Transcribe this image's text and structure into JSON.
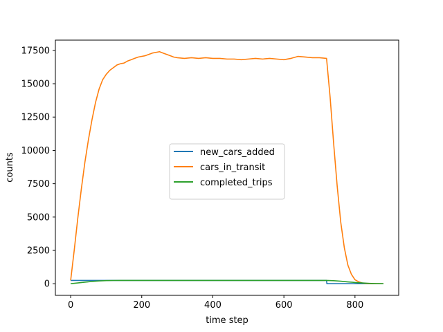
{
  "chart_data": {
    "type": "line",
    "title": "",
    "xlabel": "time step",
    "ylabel": "counts",
    "xlim": [
      -43,
      923
    ],
    "ylim": [
      -870,
      18270
    ],
    "xticks": [
      0,
      200,
      400,
      600,
      800
    ],
    "yticks": [
      0,
      2500,
      5000,
      7500,
      10000,
      12500,
      15000,
      17500
    ],
    "grid": false,
    "legend_position": "center",
    "series": [
      {
        "name": "new_cars_added",
        "color": "#1f77b4",
        "x": [
          0,
          5,
          720,
          721,
          880
        ],
        "y": [
          250,
          250,
          250,
          0,
          0
        ]
      },
      {
        "name": "cars_in_transit",
        "color": "#ff7f0e",
        "x": [
          0,
          10,
          20,
          30,
          40,
          50,
          60,
          70,
          80,
          90,
          100,
          110,
          120,
          130,
          140,
          150,
          160,
          170,
          180,
          190,
          200,
          210,
          220,
          230,
          240,
          250,
          260,
          270,
          280,
          290,
          300,
          320,
          340,
          360,
          380,
          400,
          420,
          440,
          460,
          480,
          500,
          520,
          540,
          560,
          580,
          600,
          620,
          640,
          660,
          680,
          700,
          720,
          730,
          740,
          750,
          760,
          770,
          780,
          790,
          800,
          810,
          820,
          830,
          840,
          850,
          860,
          870,
          880
        ],
        "y": [
          250,
          2500,
          4900,
          7100,
          9100,
          10800,
          12300,
          13600,
          14600,
          15300,
          15700,
          16000,
          16200,
          16400,
          16500,
          16550,
          16700,
          16800,
          16900,
          17000,
          17050,
          17100,
          17200,
          17300,
          17350,
          17400,
          17300,
          17200,
          17100,
          17000,
          16950,
          16900,
          16950,
          16900,
          16950,
          16900,
          16900,
          16850,
          16850,
          16800,
          16850,
          16900,
          16850,
          16900,
          16850,
          16800,
          16900,
          17050,
          17000,
          16950,
          16950,
          16900,
          14000,
          10500,
          7300,
          4600,
          2700,
          1400,
          700,
          300,
          150,
          60,
          20,
          10,
          5,
          0,
          0,
          0
        ]
      },
      {
        "name": "completed_trips",
        "color": "#2ca02c",
        "x": [
          0,
          20,
          40,
          60,
          80,
          100,
          120,
          140,
          200,
          300,
          400,
          500,
          600,
          700,
          720,
          740,
          760,
          780,
          800,
          820,
          840,
          860,
          880
        ],
        "y": [
          0,
          60,
          120,
          170,
          210,
          235,
          245,
          250,
          250,
          250,
          250,
          250,
          250,
          250,
          250,
          230,
          190,
          140,
          95,
          60,
          30,
          10,
          0
        ]
      }
    ]
  }
}
